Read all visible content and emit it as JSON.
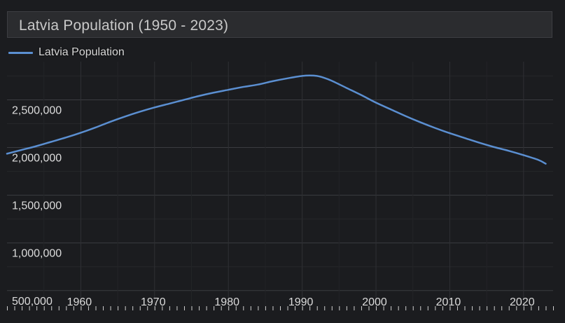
{
  "title": "Latvia Population (1950 - 2023)",
  "chart_data": {
    "type": "line",
    "title": "Latvia Population (1950 - 2023)",
    "xlabel": "",
    "ylabel": "",
    "xlim": [
      1950,
      2024
    ],
    "ylim": [
      300000,
      2900000
    ],
    "grid": true,
    "legend": "top-left",
    "y_ticks": [
      500000,
      1000000,
      1500000,
      2000000,
      2500000
    ],
    "y_tick_labels": [
      "500,000",
      "1,000,000",
      "1,500,000",
      "2,000,000",
      "2,500,000"
    ],
    "x_ticks": [
      1960,
      1970,
      1980,
      1990,
      2000,
      2010,
      2020
    ],
    "x_tick_labels": [
      "1960",
      "1970",
      "1980",
      "1990",
      "2000",
      "2010",
      "2020"
    ],
    "series": [
      {
        "name": "Latvia Population",
        "color": "#5b8fd1",
        "x": [
          1950,
          1952,
          1954,
          1956,
          1958,
          1960,
          1962,
          1964,
          1966,
          1968,
          1970,
          1972,
          1974,
          1976,
          1978,
          1980,
          1982,
          1984,
          1986,
          1988,
          1990,
          1991,
          1992,
          1993,
          1994,
          1996,
          1998,
          2000,
          2002,
          2004,
          2006,
          2008,
          2010,
          2012,
          2014,
          2016,
          2018,
          2020,
          2022,
          2023
        ],
        "y": [
          1935000,
          1975000,
          2015000,
          2060000,
          2105000,
          2155000,
          2210000,
          2270000,
          2325000,
          2375000,
          2420000,
          2460000,
          2500000,
          2540000,
          2575000,
          2605000,
          2635000,
          2660000,
          2695000,
          2725000,
          2750000,
          2755000,
          2750000,
          2730000,
          2700000,
          2625000,
          2550000,
          2470000,
          2400000,
          2330000,
          2265000,
          2205000,
          2150000,
          2100000,
          2050000,
          2005000,
          1965000,
          1920000,
          1870000,
          1830000
        ]
      }
    ]
  }
}
